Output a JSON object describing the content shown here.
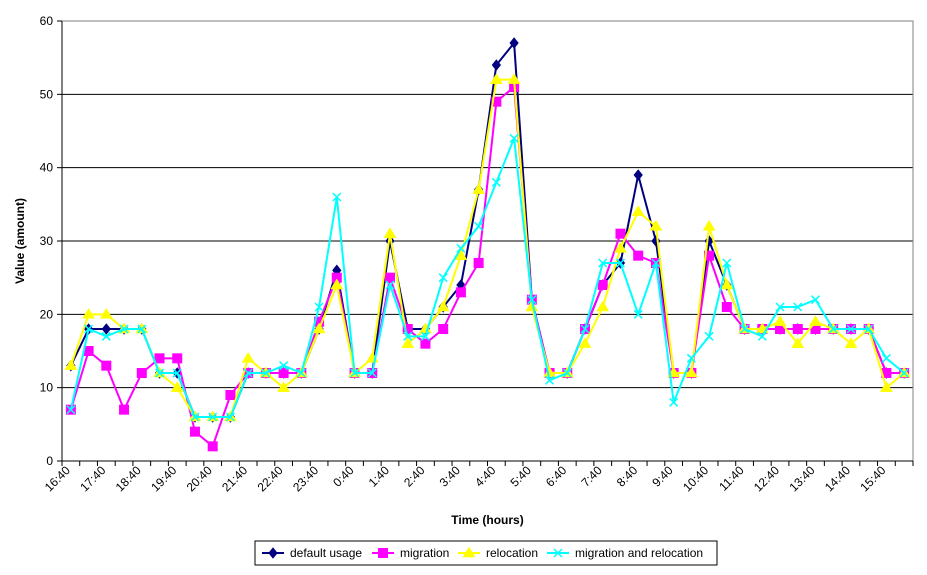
{
  "chart_data": {
    "type": "line",
    "title": "",
    "xlabel": "Time (hours)",
    "ylabel": "Value (amount)",
    "ylim": [
      0,
      60
    ],
    "yticks": [
      0,
      10,
      20,
      30,
      40,
      50,
      60
    ],
    "grid": "horizontal",
    "legend_position": "bottom",
    "xtick_labels": [
      "16:40",
      "17:40",
      "18:40",
      "19:40",
      "20:40",
      "21:40",
      "22:40",
      "23:40",
      "0:40",
      "1:40",
      "2:40",
      "3:40",
      "4:40",
      "5:40",
      "6:40",
      "7:40",
      "8:40",
      "9:40",
      "10:40",
      "11:40",
      "12:40",
      "13:40",
      "14:40",
      "15:40"
    ],
    "x": [
      "16:40",
      "17:10",
      "17:40",
      "18:10",
      "18:40",
      "19:10",
      "19:40",
      "20:10",
      "20:40",
      "21:10",
      "21:40",
      "22:10",
      "22:40",
      "23:10",
      "23:40",
      "0:10",
      "0:40",
      "1:10",
      "1:40",
      "2:10",
      "2:40",
      "3:10",
      "3:40",
      "4:10",
      "4:40",
      "5:10",
      "5:40",
      "6:10",
      "6:40",
      "7:10",
      "7:40",
      "8:10",
      "8:40",
      "9:10",
      "9:40",
      "10:10",
      "10:40",
      "11:10",
      "11:40",
      "12:10",
      "12:40",
      "13:10",
      "13:40",
      "14:10",
      "14:40",
      "15:10",
      "15:40",
      "16:10"
    ],
    "series": [
      {
        "name": "default usage",
        "color": "#000080",
        "marker": "diamond",
        "values": [
          13,
          18,
          18,
          18,
          18,
          12,
          12,
          6,
          6,
          6,
          12,
          12,
          12,
          12,
          18,
          26,
          12,
          12,
          30,
          18,
          18,
          21,
          24,
          37,
          54,
          57,
          22,
          12,
          12,
          18,
          24,
          27,
          39,
          30,
          12,
          12,
          30,
          24,
          18,
          18,
          18,
          18,
          18,
          18,
          18,
          18,
          12,
          12
        ]
      },
      {
        "name": "migration",
        "color": "#FF00FF",
        "marker": "square",
        "values": [
          7,
          15,
          13,
          7,
          12,
          14,
          14,
          4,
          2,
          9,
          12,
          12,
          12,
          12,
          19,
          25,
          12,
          12,
          25,
          18,
          16,
          18,
          23,
          27,
          49,
          51,
          22,
          12,
          12,
          18,
          24,
          31,
          28,
          27,
          12,
          12,
          28,
          21,
          18,
          18,
          18,
          18,
          18,
          18,
          18,
          18,
          12,
          12
        ]
      },
      {
        "name": "relocation",
        "color": "#FFFF00",
        "marker": "triangle",
        "values": [
          13,
          20,
          20,
          18,
          18,
          12,
          10,
          6,
          6,
          6,
          14,
          12,
          10,
          12,
          18,
          24,
          12,
          14,
          31,
          16,
          18,
          21,
          28,
          37,
          52,
          52,
          21,
          12,
          12,
          16,
          21,
          29,
          34,
          32,
          12,
          12,
          32,
          24,
          18,
          18,
          19,
          16,
          19,
          18,
          16,
          18,
          10,
          12
        ]
      },
      {
        "name": "migration and relocation",
        "color": "#00FFFF",
        "marker": "x",
        "values": [
          7,
          18,
          17,
          18,
          18,
          12,
          12,
          6,
          6,
          6,
          12,
          12,
          13,
          12,
          21,
          36,
          12,
          12,
          24,
          17,
          17,
          25,
          29,
          32,
          38,
          44,
          22,
          11,
          12,
          18,
          27,
          27,
          20,
          27,
          8,
          14,
          17,
          27,
          18,
          17,
          21,
          21,
          22,
          18,
          18,
          18,
          14,
          12
        ]
      }
    ]
  }
}
